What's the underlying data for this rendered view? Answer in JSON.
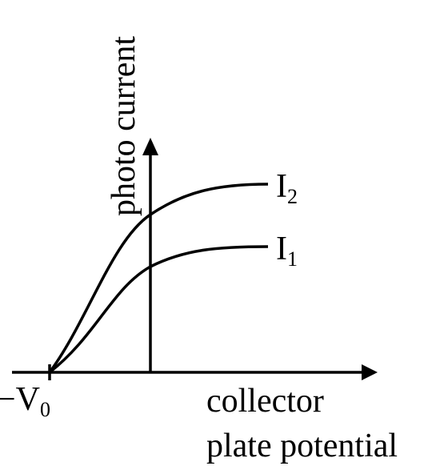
{
  "y_axis_label": "photo current",
  "x_axis_label": [
    "collector",
    "plate potential"
  ],
  "origin_label": {
    "text": "−V",
    "subscript": "0"
  },
  "curves": [
    {
      "label": "I",
      "subscript": "2"
    },
    {
      "label": "I",
      "subscript": "1"
    }
  ]
}
